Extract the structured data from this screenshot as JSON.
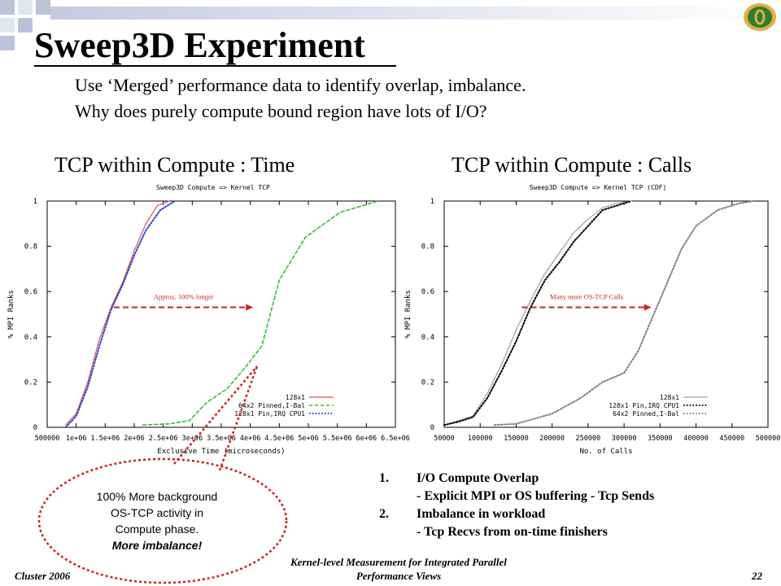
{
  "slide": {
    "title": "Sweep3D Experiment",
    "bullets": [
      "Use ‘Merged’ performance data to identify overlap, imbalance.",
      "Why does purely compute bound region have lots of I/O?"
    ],
    "left_heading": "TCP within Compute : Time",
    "right_heading": "TCP within Compute : Calls",
    "callout": {
      "lines": [
        "100% More background",
        "OS-TCP activity in",
        "Compute phase."
      ],
      "emphasis": "More imbalance!"
    },
    "notes": [
      {
        "num": "1.",
        "head": "I/O Compute Overlap",
        "detail": "- Explicit MPI or OS buffering - Tcp Sends"
      },
      {
        "num": "2.",
        "head": "Imbalance in workload",
        "detail": "- Tcp Recvs from on-time finishers"
      }
    ],
    "footer": {
      "left": "Cluster 2006",
      "center1": "Kernel-level Measurement for Integrated Parallel",
      "center2": "Performance Views",
      "right": "22"
    },
    "colors": {
      "accent_red": "#d31f1f",
      "logo_green": "#2e7d32",
      "logo_gold": "#e0b040"
    }
  },
  "chart_data": [
    {
      "type": "line",
      "title": "Sweep3D Compute => Kernel TCP",
      "xlabel": "Exclusive Time (microseconds)",
      "ylabel": "% MPI Ranks",
      "xlim": [
        500000,
        6500000
      ],
      "ylim": [
        0,
        1
      ],
      "xticks": [
        500000,
        1000000,
        1500000,
        2000000,
        2500000,
        3000000,
        3500000,
        4000000,
        4500000,
        5000000,
        5500000,
        6000000,
        6500000
      ],
      "xtick_labels": [
        "500000",
        "1e+06",
        "1.5e+06",
        "2e+06",
        "2.5e+06",
        "3e+06",
        "3.5e+06",
        "4e+06",
        "4.5e+06",
        "5e+06",
        "5.5e+06",
        "6e+06",
        "6.5e+06"
      ],
      "yticks": [
        0,
        0.2,
        0.4,
        0.6,
        0.8,
        1
      ],
      "ytick_labels": [
        "0",
        "0.2",
        "0.4",
        "0.6",
        "0.8",
        "1"
      ],
      "legend": "bottom-right",
      "annotation": {
        "text": "Approx. 100% longer",
        "from": [
          1650000,
          0.53
        ],
        "to": [
          4050000,
          0.53
        ]
      },
      "series": [
        {
          "name": "128x1",
          "color": "#e05050",
          "style": "solid",
          "points": [
            [
              820000,
              0.01
            ],
            [
              1000000,
              0.06
            ],
            [
              1200000,
              0.2
            ],
            [
              1400000,
              0.39
            ],
            [
              1600000,
              0.53
            ],
            [
              1800000,
              0.64
            ],
            [
              2000000,
              0.78
            ],
            [
              2200000,
              0.9
            ],
            [
              2400000,
              0.98
            ],
            [
              2600000,
              1.0
            ]
          ]
        },
        {
          "name": "64x2 Pinned,I-Bal",
          "color": "#30c030",
          "style": "dashed",
          "points": [
            [
              2150000,
              0.01
            ],
            [
              2600000,
              0.015
            ],
            [
              2950000,
              0.03
            ],
            [
              3250000,
              0.11
            ],
            [
              3600000,
              0.17
            ],
            [
              3900000,
              0.26
            ],
            [
              4200000,
              0.36
            ],
            [
              4500000,
              0.65
            ],
            [
              4950000,
              0.84
            ],
            [
              5550000,
              0.95
            ],
            [
              6200000,
              1.0
            ]
          ]
        },
        {
          "name": "128x1 Pin,IRQ CPU1",
          "color": "#3040d0",
          "style": "dotted",
          "points": [
            [
              820000,
              0.0
            ],
            [
              1000000,
              0.05
            ],
            [
              1200000,
              0.18
            ],
            [
              1400000,
              0.36
            ],
            [
              1600000,
              0.52
            ],
            [
              1800000,
              0.63
            ],
            [
              2000000,
              0.76
            ],
            [
              2200000,
              0.87
            ],
            [
              2450000,
              0.96
            ],
            [
              2700000,
              1.0
            ]
          ]
        }
      ]
    },
    {
      "type": "line",
      "title": "Sweep3D Compute => Kernel TCP (CDF)",
      "xlabel": "No. of Calls",
      "ylabel": "% MPI Ranks",
      "xlim": [
        50000,
        500000
      ],
      "ylim": [
        0,
        1
      ],
      "xticks": [
        50000,
        100000,
        150000,
        200000,
        250000,
        300000,
        350000,
        400000,
        450000,
        500000
      ],
      "xtick_labels": [
        "50000",
        "100000",
        "150000",
        "200000",
        "250000",
        "300000",
        "350000",
        "400000",
        "450000",
        "500000"
      ],
      "yticks": [
        0,
        0.2,
        0.4,
        0.6,
        0.8,
        1
      ],
      "ytick_labels": [
        "0",
        "0.2",
        "0.4",
        "0.6",
        "0.8",
        "1"
      ],
      "legend": "bottom-right",
      "annotation": {
        "text": "Many more OS-TCP Calls",
        "from": [
          158000,
          0.53
        ],
        "to": [
          338000,
          0.53
        ]
      },
      "series": [
        {
          "name": "128x1",
          "color": "#a0a0a0",
          "style": "solid",
          "points": [
            [
              50000,
              0.01
            ],
            [
              70000,
              0.03
            ],
            [
              90000,
              0.05
            ],
            [
              110000,
              0.15
            ],
            [
              130000,
              0.28
            ],
            [
              150000,
              0.43
            ],
            [
              170000,
              0.56
            ],
            [
              190000,
              0.68
            ],
            [
              210000,
              0.77
            ],
            [
              230000,
              0.86
            ],
            [
              250000,
              0.92
            ],
            [
              270000,
              0.97
            ],
            [
              290000,
              0.99
            ],
            [
              310000,
              1.0
            ]
          ]
        },
        {
          "name": "128x1 Pin,IRQ CPU1",
          "color": "#000000",
          "style": "dotted",
          "points": [
            [
              50000,
              0.01
            ],
            [
              70000,
              0.025
            ],
            [
              90000,
              0.045
            ],
            [
              110000,
              0.13
            ],
            [
              130000,
              0.25
            ],
            [
              150000,
              0.38
            ],
            [
              170000,
              0.53
            ],
            [
              190000,
              0.65
            ],
            [
              210000,
              0.73
            ],
            [
              230000,
              0.82
            ],
            [
              250000,
              0.89
            ],
            [
              270000,
              0.96
            ],
            [
              290000,
              0.98
            ],
            [
              310000,
              1.0
            ]
          ]
        },
        {
          "name": "64x2 Pinned,I-Bal",
          "color": "#808080",
          "style": "dotted",
          "points": [
            [
              120000,
              0.01
            ],
            [
              150000,
              0.015
            ],
            [
              200000,
              0.06
            ],
            [
              240000,
              0.13
            ],
            [
              270000,
              0.2
            ],
            [
              300000,
              0.24
            ],
            [
              320000,
              0.34
            ],
            [
              340000,
              0.49
            ],
            [
              360000,
              0.64
            ],
            [
              380000,
              0.79
            ],
            [
              400000,
              0.89
            ],
            [
              430000,
              0.96
            ],
            [
              460000,
              0.99
            ],
            [
              480000,
              1.0
            ]
          ]
        }
      ]
    }
  ]
}
